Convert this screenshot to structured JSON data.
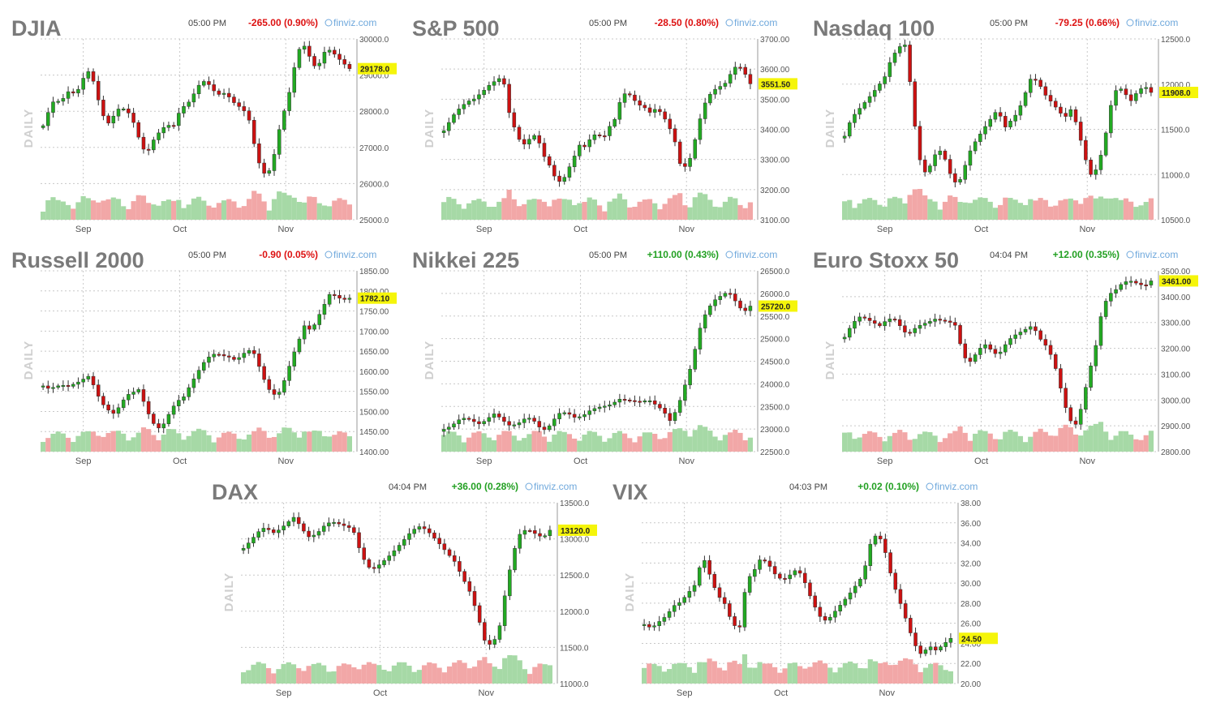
{
  "colors": {
    "up": "#22aa22",
    "down": "#cc1111",
    "vol_up": "#a6d9a6",
    "vol_down": "#f2a7a7",
    "last_bg": "#f5f50a",
    "pos_change": "#22a022",
    "neg_change": "#dd1111"
  },
  "side_label": "DAILY",
  "source": "finviz.com",
  "months": [
    "Sep",
    "Oct",
    "Nov"
  ],
  "chart_data": [
    {
      "type": "candlestick",
      "title": "DJIA",
      "time": "05:00 PM",
      "change": "-265.00 (0.90%)",
      "direction": "down",
      "last": "29178.0",
      "ylim": [
        25000,
        30000
      ],
      "yticks": [
        "30000.0",
        "29000.0",
        "28000.0",
        "27000.0",
        "26000.0",
        "25000.0"
      ],
      "ytick_values": [
        30000,
        29000,
        28000,
        27000,
        26000,
        25000
      ],
      "path": [
        27600,
        28000,
        28300,
        28150,
        28500,
        28450,
        28600,
        29000,
        29200,
        28600,
        28000,
        27700,
        27900,
        28100,
        28000,
        27800,
        27300,
        26900,
        26900,
        27300,
        27500,
        27700,
        27600,
        28000,
        28200,
        28300,
        28600,
        28800,
        28700,
        28500,
        28400,
        28500,
        28300,
        28200,
        28100,
        27800,
        27000,
        26400,
        26200,
        26600,
        27400,
        28000,
        28600,
        29500,
        29900,
        29600,
        29300,
        29400,
        29800,
        29700,
        29500,
        29300,
        29178
      ]
    },
    {
      "type": "candlestick",
      "title": "S&P 500",
      "time": "05:00 PM",
      "change": "-28.50 (0.80%)",
      "direction": "down",
      "last": "3551.50",
      "ylim": [
        3100,
        3700
      ],
      "yticks": [
        "3700.00",
        "3600.00",
        "3500.00",
        "3400.00",
        "3300.00",
        "3200.00",
        "3100.00"
      ],
      "ytick_values": [
        3700,
        3600,
        3500,
        3400,
        3300,
        3200,
        3100
      ],
      "path": [
        3390,
        3420,
        3450,
        3470,
        3490,
        3500,
        3520,
        3540,
        3560,
        3570,
        3580,
        3460,
        3400,
        3350,
        3340,
        3380,
        3360,
        3310,
        3280,
        3240,
        3230,
        3270,
        3310,
        3350,
        3340,
        3370,
        3380,
        3360,
        3400,
        3430,
        3500,
        3530,
        3510,
        3490,
        3480,
        3460,
        3470,
        3450,
        3410,
        3370,
        3280,
        3270,
        3310,
        3400,
        3480,
        3520,
        3540,
        3550,
        3560,
        3600,
        3610,
        3580,
        3551
      ]
    },
    {
      "type": "candlestick",
      "title": "Nasdaq 100",
      "time": "05:00 PM",
      "change": "-79.25 (0.66%)",
      "direction": "down",
      "last": "11908.0",
      "ylim": [
        10500,
        12500
      ],
      "yticks": [
        "12500.0",
        "12000.0",
        "11500.0",
        "11000.0",
        "10500.0"
      ],
      "ytick_values": [
        12500,
        12000,
        11500,
        11000,
        10500
      ],
      "path": [
        11400,
        11600,
        11700,
        11800,
        11900,
        12000,
        12100,
        12300,
        12400,
        12450,
        11900,
        11200,
        11000,
        11100,
        11300,
        11200,
        11000,
        10900,
        11100,
        11300,
        11400,
        11500,
        11600,
        11700,
        11500,
        11600,
        11700,
        11900,
        12100,
        12050,
        11900,
        11800,
        11700,
        11600,
        11700,
        11500,
        11200,
        11000,
        11100,
        11400,
        11800,
        12000,
        11900,
        11800,
        11900,
        11950,
        11908
      ]
    },
    {
      "type": "candlestick",
      "title": "Russell 2000",
      "time": "05:00 PM",
      "change": "-0.90 (0.05%)",
      "direction": "down",
      "last": "1782.10",
      "ylim": [
        1400,
        1850
      ],
      "yticks": [
        "1850.00",
        "1800.00",
        "1750.00",
        "1700.00",
        "1650.00",
        "1600.00",
        "1550.00",
        "1500.00",
        "1450.00",
        "1400.00"
      ],
      "ytick_values": [
        1850,
        1800,
        1750,
        1700,
        1650,
        1600,
        1550,
        1500,
        1450,
        1400
      ],
      "path": [
        1560,
        1555,
        1565,
        1570,
        1568,
        1575,
        1580,
        1590,
        1560,
        1520,
        1500,
        1490,
        1510,
        1540,
        1550,
        1560,
        1520,
        1480,
        1460,
        1470,
        1500,
        1520,
        1530,
        1560,
        1590,
        1620,
        1640,
        1650,
        1645,
        1640,
        1630,
        1635,
        1650,
        1640,
        1600,
        1560,
        1540,
        1550,
        1590,
        1640,
        1680,
        1720,
        1700,
        1730,
        1760,
        1790,
        1780,
        1775,
        1782
      ]
    },
    {
      "type": "candlestick",
      "title": "Nikkei 225",
      "time": "05:00 PM",
      "change": "+110.00 (0.43%)",
      "direction": "up",
      "last": "25720.0",
      "ylim": [
        22500,
        26500
      ],
      "yticks": [
        "26500.0",
        "26000.0",
        "25500.0",
        "25000.0",
        "24500.0",
        "24000.0",
        "23500.0",
        "23000.0",
        "22500.0"
      ],
      "ytick_values": [
        26500,
        26000,
        25500,
        25000,
        24500,
        24000,
        23500,
        23000,
        22500
      ],
      "path": [
        23000,
        23100,
        23250,
        23300,
        23200,
        23100,
        23200,
        23300,
        23150,
        23050,
        23100,
        23250,
        23300,
        23100,
        23000,
        23200,
        23350,
        23300,
        23200,
        23250,
        23400,
        23500,
        23550,
        23600,
        23700,
        23650,
        23600,
        23550,
        23600,
        23500,
        23400,
        23200,
        23500,
        24000,
        24500,
        25200,
        25600,
        25800,
        25900,
        26000,
        25800,
        25600,
        25720
      ]
    },
    {
      "type": "candlestick",
      "title": "Euro Stoxx 50",
      "time": "04:04 PM",
      "change": "+12.00 (0.35%)",
      "direction": "up",
      "last": "3461.00",
      "ylim": [
        2800,
        3500
      ],
      "yticks": [
        "3500.00",
        "3400.00",
        "3300.00",
        "3200.00",
        "3100.00",
        "3000.00",
        "2900.00",
        "2800.00"
      ],
      "ytick_values": [
        3500,
        3400,
        3300,
        3200,
        3100,
        3000,
        2900,
        2800
      ],
      "path": [
        3250,
        3300,
        3330,
        3320,
        3300,
        3280,
        3300,
        3310,
        3280,
        3250,
        3280,
        3300,
        3310,
        3320,
        3310,
        3300,
        3280,
        3160,
        3140,
        3180,
        3220,
        3200,
        3180,
        3220,
        3250,
        3260,
        3270,
        3280,
        3230,
        3200,
        3150,
        3050,
        2950,
        2900,
        2980,
        3100,
        3200,
        3350,
        3400,
        3420,
        3450,
        3460,
        3455,
        3450,
        3461
      ]
    },
    {
      "type": "candlestick",
      "title": "DAX",
      "time": "04:04 PM",
      "change": "+36.00 (0.28%)",
      "direction": "up",
      "last": "13120.0",
      "ylim": [
        11000,
        13500
      ],
      "yticks": [
        "13500.0",
        "13000.0",
        "12500.0",
        "12000.0",
        "11500.0",
        "11000.0"
      ],
      "ytick_values": [
        13500,
        13000,
        12500,
        12000,
        11500,
        11000
      ],
      "path": [
        12900,
        13000,
        13100,
        13150,
        13050,
        13100,
        13200,
        13300,
        13150,
        13050,
        13100,
        13200,
        13250,
        13200,
        13150,
        13100,
        12800,
        12600,
        12600,
        12700,
        12800,
        12900,
        13000,
        13100,
        13150,
        13100,
        13000,
        12900,
        12800,
        12700,
        12500,
        12300,
        12000,
        11600,
        11500,
        11700,
        12300,
        12800,
        13100,
        13150,
        13100,
        13050,
        13120
      ]
    },
    {
      "type": "candlestick",
      "title": "VIX",
      "time": "04:03 PM",
      "change": "+0.02 (0.10%)",
      "direction": "up",
      "last": "24.50",
      "ylim": [
        20,
        38
      ],
      "yticks": [
        "38.00",
        "36.00",
        "34.00",
        "32.00",
        "30.00",
        "28.00",
        "26.00",
        "24.00",
        "22.00",
        "20.00"
      ],
      "ytick_values": [
        38,
        36,
        34,
        32,
        30,
        28,
        26,
        24,
        22,
        20
      ],
      "path": [
        26,
        25.5,
        26,
        26.5,
        27.5,
        28,
        29,
        30,
        33,
        31,
        29,
        28,
        26,
        25,
        30,
        31,
        32.5,
        32,
        31,
        30.5,
        31,
        31.5,
        30,
        28,
        26.5,
        26,
        27,
        28,
        29,
        30,
        31,
        34,
        35,
        33,
        30,
        28,
        26,
        24,
        23,
        24,
        23.5,
        24,
        24.5
      ]
    }
  ]
}
